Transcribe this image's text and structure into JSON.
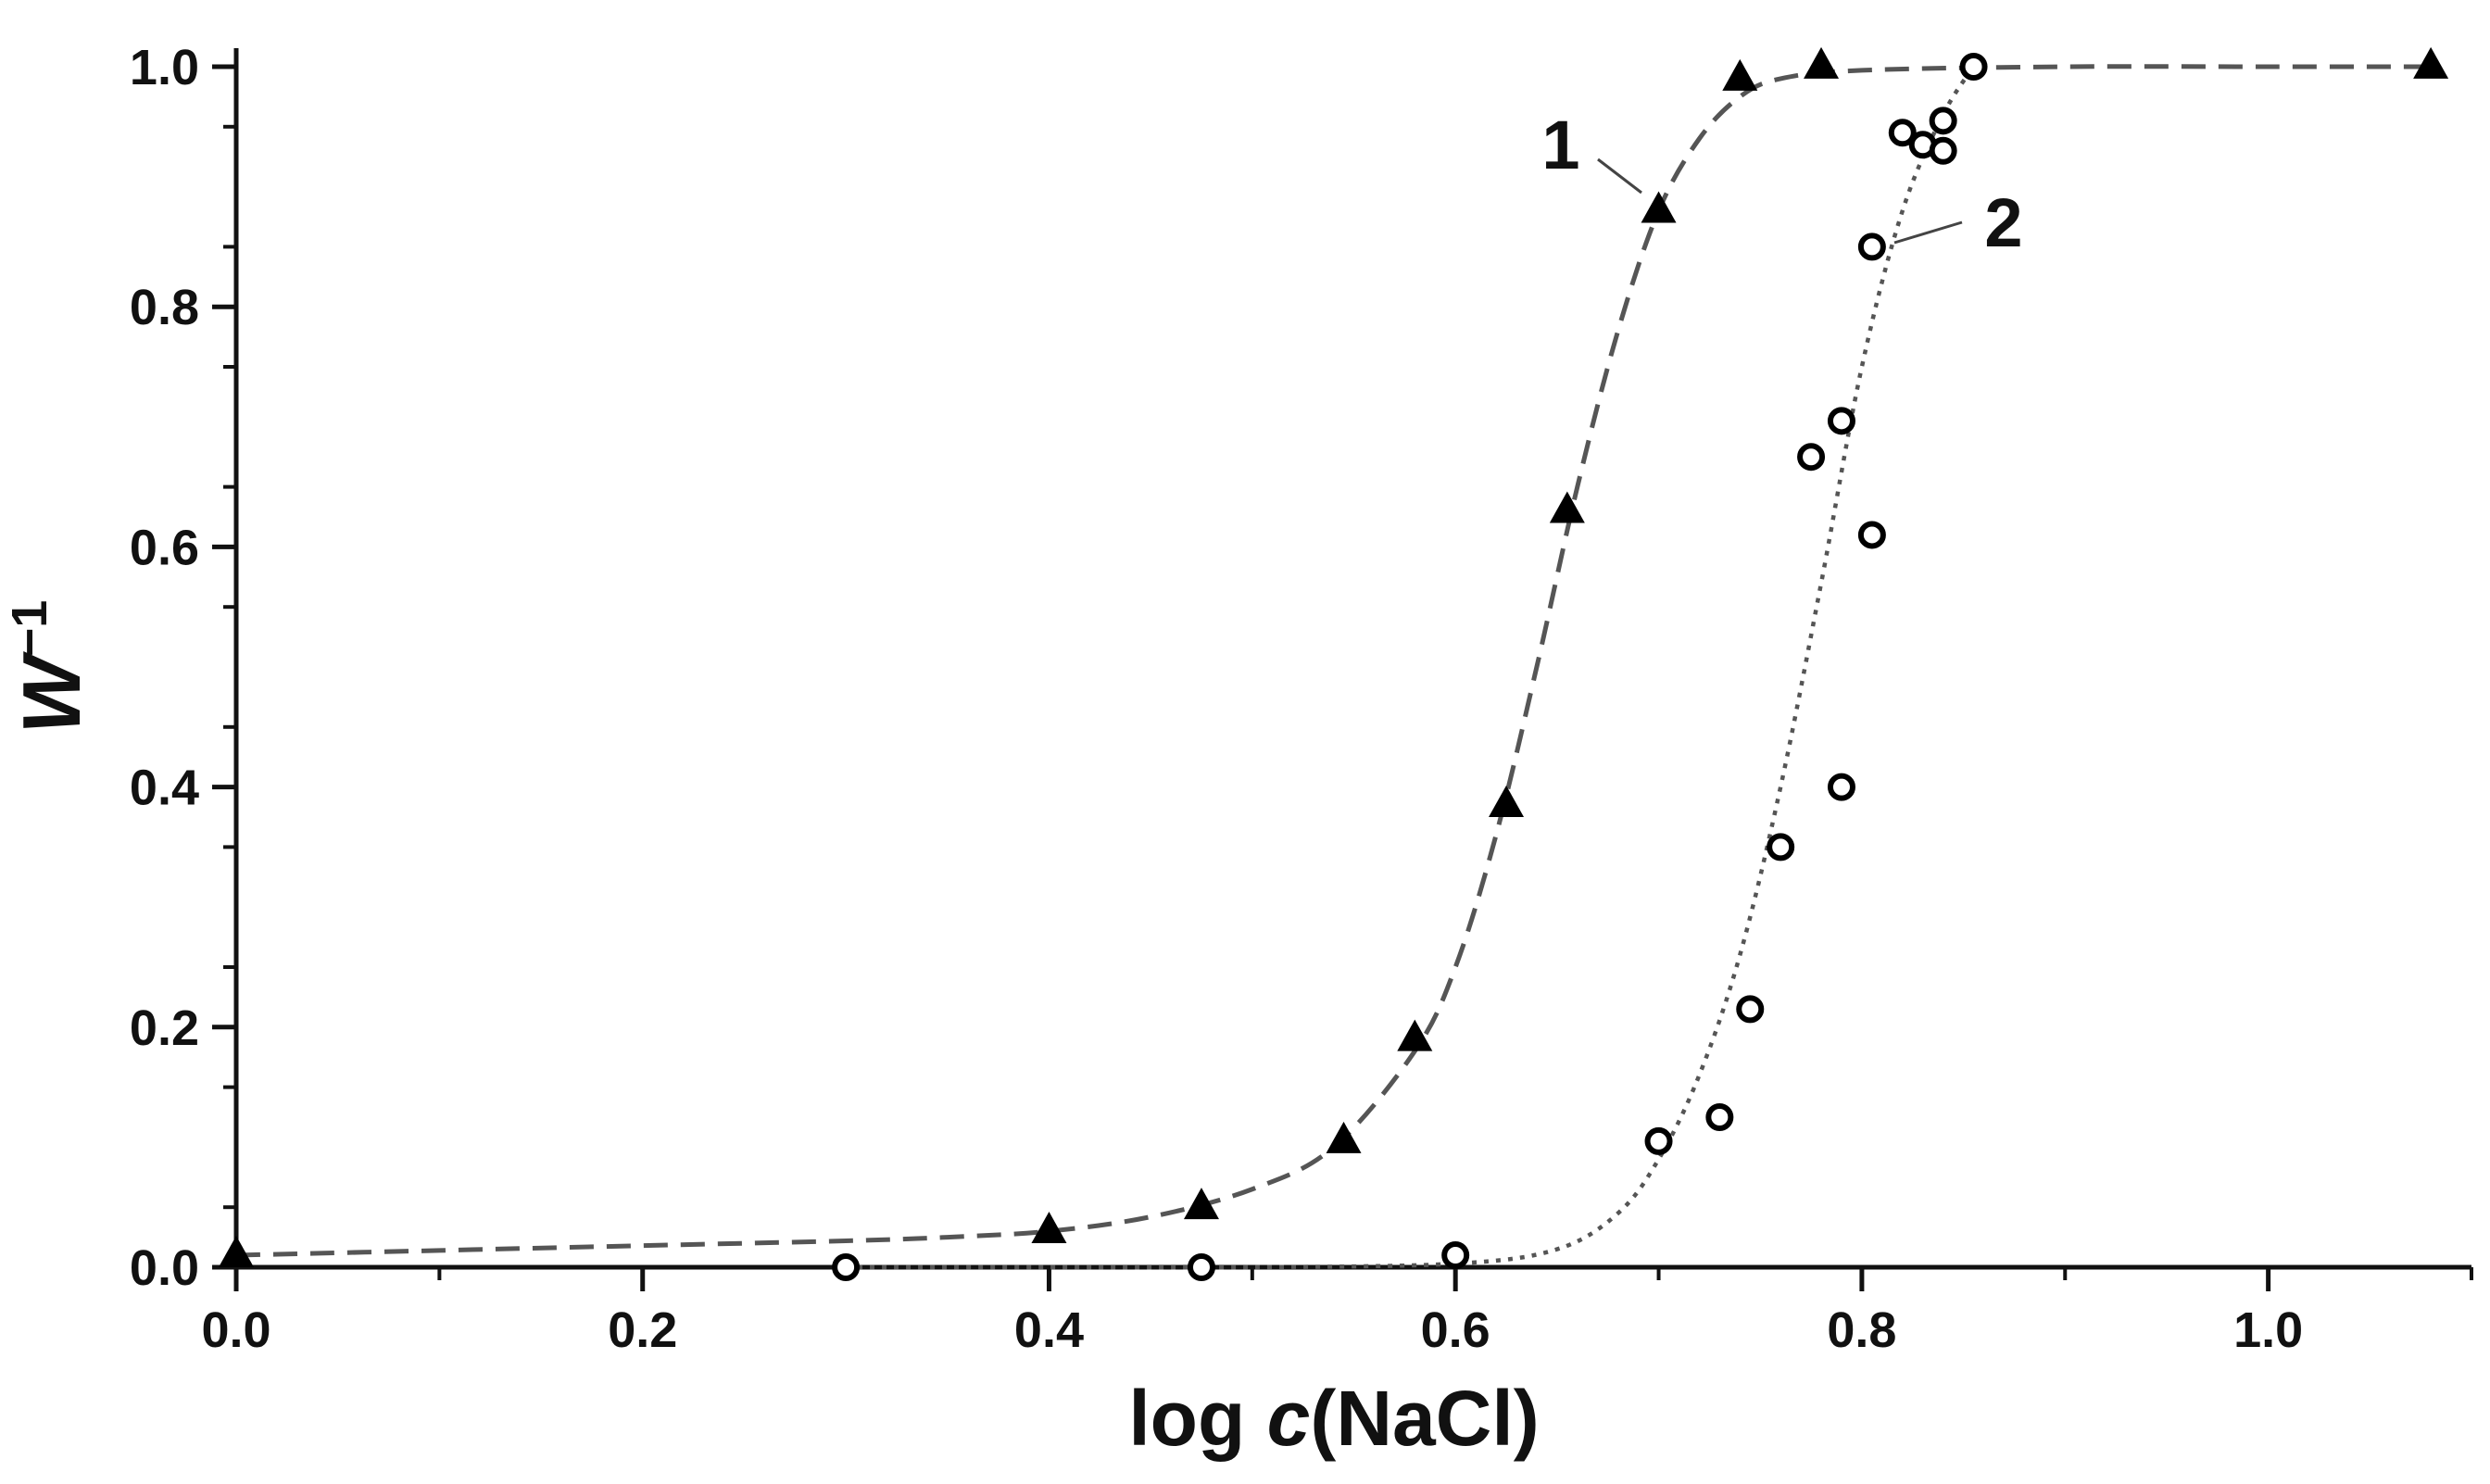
{
  "chart_data": {
    "type": "scatter",
    "title": "",
    "xlabel": {
      "prefix": "log ",
      "variable": "c",
      "suffix": "(NaCl)"
    },
    "ylabel": {
      "base": "W",
      "superscript": "−1"
    },
    "xlim": [
      0.0,
      1.1
    ],
    "ylim": [
      0.0,
      1.0
    ],
    "x_ticks": [
      "0.0",
      "0.2",
      "0.4",
      "0.6",
      "0.8",
      "1.0"
    ],
    "y_ticks": [
      "0.0",
      "0.2",
      "0.4",
      "0.6",
      "0.8",
      "1.0"
    ],
    "grid": false,
    "colors": {
      "points": "#000000",
      "curve": "#555555",
      "axis": "#111111"
    },
    "series": [
      {
        "label": "1",
        "marker": "triangle",
        "line_style": "dashed",
        "points": [
          [
            0.0,
            0.01
          ],
          [
            0.4,
            0.03
          ],
          [
            0.475,
            0.05
          ],
          [
            0.545,
            0.105
          ],
          [
            0.58,
            0.19
          ],
          [
            0.625,
            0.385
          ],
          [
            0.655,
            0.63
          ],
          [
            0.7,
            0.88
          ],
          [
            0.74,
            0.99
          ],
          [
            0.78,
            1.0
          ],
          [
            1.08,
            1.0
          ]
        ],
        "fit_curve": [
          [
            0.0,
            0.01
          ],
          [
            0.1,
            0.014
          ],
          [
            0.2,
            0.018
          ],
          [
            0.3,
            0.022
          ],
          [
            0.35,
            0.025
          ],
          [
            0.4,
            0.03
          ],
          [
            0.45,
            0.042
          ],
          [
            0.5,
            0.065
          ],
          [
            0.54,
            0.1
          ],
          [
            0.58,
            0.18
          ],
          [
            0.6,
            0.25
          ],
          [
            0.62,
            0.36
          ],
          [
            0.64,
            0.5
          ],
          [
            0.66,
            0.65
          ],
          [
            0.68,
            0.78
          ],
          [
            0.7,
            0.88
          ],
          [
            0.72,
            0.94
          ],
          [
            0.74,
            0.975
          ],
          [
            0.76,
            0.99
          ],
          [
            0.8,
            0.997
          ],
          [
            0.9,
            1.0
          ],
          [
            1.0,
            1.0
          ],
          [
            1.08,
            1.0
          ]
        ]
      },
      {
        "label": "2",
        "marker": "circle",
        "line_style": "dotted",
        "points": [
          [
            0.3,
            0.0
          ],
          [
            0.475,
            0.0
          ],
          [
            0.6,
            0.01
          ],
          [
            0.7,
            0.105
          ],
          [
            0.73,
            0.125
          ],
          [
            0.745,
            0.215
          ],
          [
            0.76,
            0.35
          ],
          [
            0.79,
            0.4
          ],
          [
            0.775,
            0.675
          ],
          [
            0.79,
            0.705
          ],
          [
            0.805,
            0.61
          ],
          [
            0.805,
            0.85
          ],
          [
            0.82,
            0.945
          ],
          [
            0.83,
            0.935
          ],
          [
            0.84,
            0.93
          ],
          [
            0.84,
            0.955
          ],
          [
            0.855,
            1.0
          ]
        ],
        "fit_curve": [
          [
            0.3,
            0.0
          ],
          [
            0.4,
            0.0
          ],
          [
            0.5,
            0.0
          ],
          [
            0.6,
            0.003
          ],
          [
            0.65,
            0.015
          ],
          [
            0.68,
            0.045
          ],
          [
            0.7,
            0.09
          ],
          [
            0.72,
            0.16
          ],
          [
            0.74,
            0.26
          ],
          [
            0.76,
            0.4
          ],
          [
            0.78,
            0.57
          ],
          [
            0.8,
            0.75
          ],
          [
            0.82,
            0.88
          ],
          [
            0.84,
            0.96
          ],
          [
            0.855,
            1.0
          ]
        ]
      }
    ]
  }
}
